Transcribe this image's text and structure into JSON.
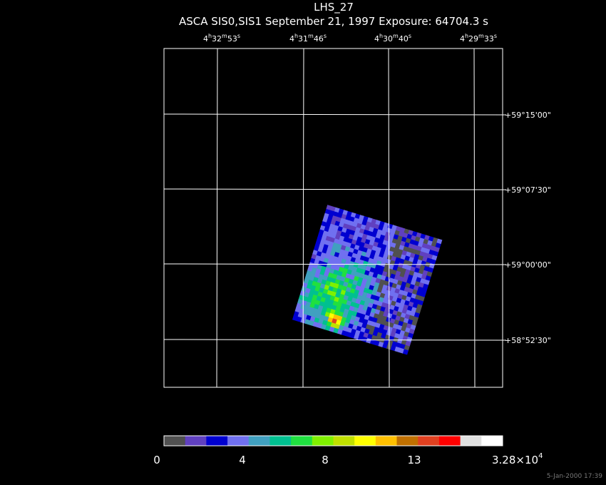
{
  "header": {
    "title": "LHS_27",
    "subtitle": "ASCA SIS0,SIS1 September 21, 1997 Exposure: 64704.3 s"
  },
  "ra_labels": [
    [
      "4",
      "h",
      "32",
      "m",
      "53",
      "s"
    ],
    [
      "4",
      "h",
      "31",
      "m",
      "46",
      "s"
    ],
    [
      "4",
      "h",
      "30",
      "m",
      "40",
      "s"
    ],
    [
      "4",
      "h",
      "29",
      "m",
      "33",
      "s"
    ]
  ],
  "dec_labels": [
    "+59°15'00\"",
    "+59°07'30\"",
    "+59°00'00\"",
    "+58°52'30\""
  ],
  "colorbar": {
    "colors": [
      "#505050",
      "#6040c0",
      "#0000d0",
      "#7070f0",
      "#40a0c0",
      "#00c090",
      "#20e040",
      "#80f000",
      "#c0e000",
      "#ffff00",
      "#ffc000",
      "#c07000",
      "#e04020",
      "#ff0000",
      "#e0e0e0",
      "#ffffff"
    ],
    "labels": [
      "0",
      "4",
      "8",
      "13"
    ],
    "max_label": {
      "base": "3.28×10",
      "exp": "4"
    }
  },
  "footer": {
    "timestamp": "5-Jan-2000 17:39"
  }
}
